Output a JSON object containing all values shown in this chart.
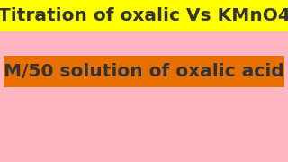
{
  "background_color": "#FFB6C1",
  "title_text": "Titration of oxalic Vs KMnO4",
  "title_bg_color": "#FFFF00",
  "title_text_color": "#333333",
  "subtitle_text": "M/50 solution of oxalic acid",
  "subtitle_bg_color": "#E87000",
  "subtitle_text_color": "#333333",
  "title_fontsize": 14.5,
  "subtitle_fontsize": 14.5,
  "fig_width": 3.2,
  "fig_height": 1.8,
  "dpi": 100
}
